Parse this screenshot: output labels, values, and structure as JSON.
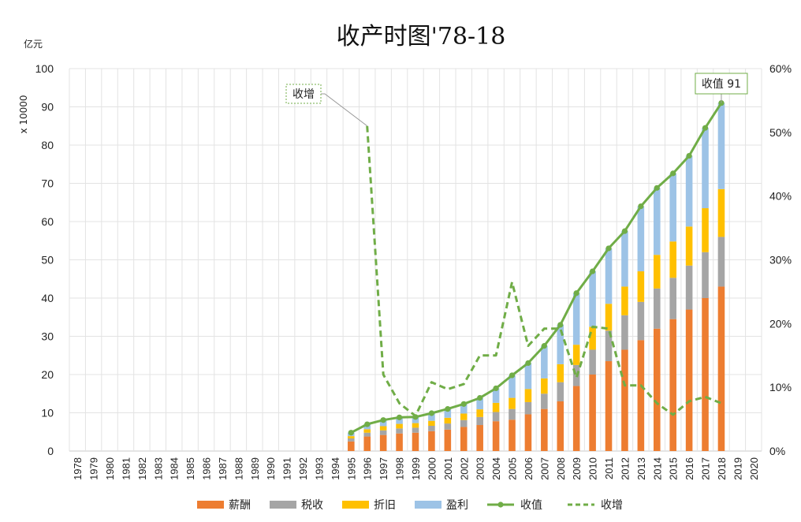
{
  "chart_data": {
    "type": "bar",
    "title": "收产时图'78-18",
    "ylabel_unit": "亿元",
    "y_scale_label": "x 10000",
    "ylim": [
      0,
      100
    ],
    "yticks": [
      0,
      10,
      20,
      30,
      40,
      50,
      60,
      70,
      80,
      90,
      100
    ],
    "y2lim": [
      0,
      60
    ],
    "y2ticks": [
      "0%",
      "10%",
      "20%",
      "30%",
      "40%",
      "50%",
      "60%"
    ],
    "categories": [
      "1978",
      "1979",
      "1980",
      "1981",
      "1982",
      "1983",
      "1984",
      "1985",
      "1986",
      "1987",
      "1988",
      "1989",
      "1990",
      "1991",
      "1992",
      "1993",
      "1994",
      "1995",
      "1996",
      "1997",
      "1998",
      "1999",
      "2000",
      "2001",
      "2002",
      "2003",
      "2004",
      "2005",
      "2006",
      "2007",
      "2008",
      "2009",
      "2010",
      "2011",
      "2012",
      "2013",
      "2014",
      "2015",
      "2016",
      "2017",
      "2018",
      "2019",
      "2020"
    ],
    "stacked_series": [
      {
        "name": "薪酬",
        "color": "#ED7D31",
        "values": [
          null,
          null,
          null,
          null,
          null,
          null,
          null,
          null,
          null,
          null,
          null,
          null,
          null,
          null,
          null,
          null,
          null,
          2.5,
          3.8,
          4.2,
          4.6,
          4.8,
          5.2,
          5.6,
          6.3,
          6.8,
          7.8,
          8.2,
          9.6,
          11.0,
          13.0,
          17.0,
          20.0,
          23.5,
          26.5,
          29.0,
          32.0,
          34.5,
          37.0,
          40.0,
          43.0,
          null,
          null
        ]
      },
      {
        "name": "税收",
        "color": "#A5A5A5",
        "values": [
          null,
          null,
          null,
          null,
          null,
          null,
          null,
          null,
          null,
          null,
          null,
          null,
          null,
          null,
          null,
          null,
          null,
          0.8,
          1.0,
          1.2,
          1.3,
          1.3,
          1.4,
          1.6,
          1.8,
          2.1,
          2.4,
          2.8,
          3.2,
          4.0,
          5.0,
          5.5,
          6.5,
          8.0,
          9.0,
          10.0,
          10.5,
          10.8,
          11.5,
          12.0,
          13.0,
          null,
          null
        ]
      },
      {
        "name": "折旧",
        "color": "#FFC000",
        "values": [
          null,
          null,
          null,
          null,
          null,
          null,
          null,
          null,
          null,
          null,
          null,
          null,
          null,
          null,
          null,
          null,
          null,
          0.6,
          0.9,
          1.1,
          1.2,
          1.2,
          1.3,
          1.5,
          1.7,
          2.0,
          2.4,
          2.9,
          3.4,
          4.0,
          4.7,
          5.3,
          6.0,
          7.0,
          7.5,
          8.0,
          8.8,
          9.5,
          10.2,
          11.5,
          12.5,
          null,
          null
        ]
      },
      {
        "name": "盈利",
        "color": "#9DC3E6",
        "values": [
          null,
          null,
          null,
          null,
          null,
          null,
          null,
          null,
          null,
          null,
          null,
          null,
          null,
          null,
          null,
          null,
          null,
          0.9,
          1.3,
          1.6,
          1.7,
          1.6,
          2.0,
          2.3,
          2.5,
          3.0,
          3.8,
          5.9,
          6.8,
          8.5,
          10.3,
          13.5,
          14.5,
          14.5,
          14.5,
          17.0,
          17.5,
          17.8,
          18.5,
          21.0,
          22.5,
          null,
          null
        ]
      }
    ],
    "line_series": [
      {
        "name": "收值",
        "color": "#70AD47",
        "style": "solid",
        "axis": "left",
        "values": [
          null,
          null,
          null,
          null,
          null,
          null,
          null,
          null,
          null,
          null,
          null,
          null,
          null,
          null,
          null,
          null,
          null,
          4.8,
          7.0,
          8.1,
          8.8,
          8.9,
          9.9,
          11.0,
          12.3,
          13.9,
          16.4,
          19.8,
          23.0,
          27.5,
          33.0,
          41.3,
          47.0,
          53.0,
          57.5,
          64.0,
          68.8,
          72.6,
          77.2,
          84.5,
          91.0,
          null,
          null
        ]
      },
      {
        "name": "收增",
        "color": "#70AD47",
        "style": "dashed",
        "axis": "right",
        "values": [
          null,
          null,
          null,
          null,
          null,
          null,
          null,
          null,
          null,
          null,
          null,
          null,
          null,
          null,
          null,
          null,
          null,
          null,
          51,
          12,
          7.5,
          5.5,
          10.8,
          9.7,
          10.5,
          15,
          15,
          26.5,
          16.5,
          19.2,
          19.2,
          11.5,
          19.5,
          19.2,
          10.3,
          10.3,
          7.5,
          5.7,
          7.8,
          8.5,
          7.5,
          null,
          null
        ]
      }
    ],
    "annotations": [
      {
        "text": "收增",
        "series": "收增"
      },
      {
        "text": "收值 91",
        "series": "收值"
      }
    ],
    "legend": {
      "position": "bottom",
      "items": [
        "薪酬",
        "税收",
        "折旧",
        "盈利",
        "收值",
        "收增"
      ]
    },
    "grid": true
  }
}
